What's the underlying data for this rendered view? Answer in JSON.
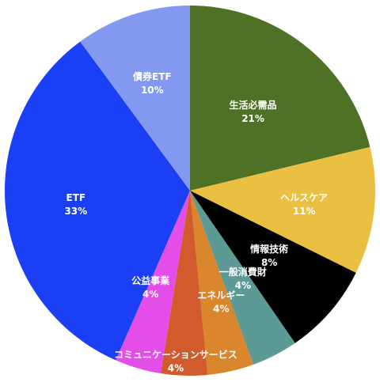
{
  "chart_data": {
    "type": "pie",
    "title": "",
    "start_label": "生活必需品",
    "direction": "clockwise",
    "slices": [
      {
        "label": "生活必需品",
        "value": 21,
        "value_label": "21%",
        "color": "#4e7125"
      },
      {
        "label": "ヘルスケア",
        "value": 11,
        "value_label": "11%",
        "color": "#eac043"
      },
      {
        "label": "情報技術",
        "value": 8,
        "value_label": "8%",
        "color": "#000000"
      },
      {
        "label": "一般消費財",
        "value": 4,
        "value_label": "4%",
        "color": "#5c9a96"
      },
      {
        "label": "エネルギー",
        "value": 4,
        "value_label": "4%",
        "color": "#d9862c"
      },
      {
        "label": "コミュニケーションサービス",
        "value": 4,
        "value_label": "4%",
        "color": "#d25b2e"
      },
      {
        "label": "公益事業",
        "value": 4,
        "value_label": "4%",
        "color": "#e34ee8"
      },
      {
        "label": "ETF",
        "value": 33,
        "value_label": "33%",
        "color": "#1b3ff5"
      },
      {
        "label": "債券ETF",
        "value": 10,
        "value_label": "10%",
        "color": "#8398f0"
      }
    ]
  }
}
